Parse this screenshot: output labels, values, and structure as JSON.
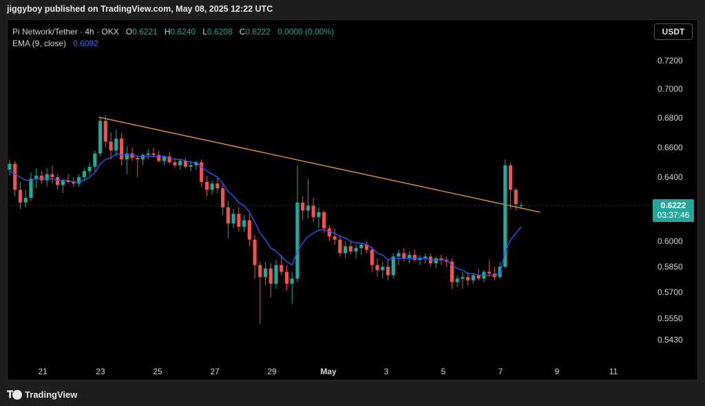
{
  "header": {
    "publish_text": "jiggyboy published on TradingView.com, May 08, 2025 12:22 UTC"
  },
  "legend": {
    "symbol": "Pi Network/Tether · 4h · OKX",
    "o_label": "O",
    "o_value": "0.6221",
    "h_label": "H",
    "h_value": "0.6240",
    "l_label": "L",
    "l_value": "0.6208",
    "c_label": "C",
    "c_value": "0.6222",
    "change": "0.0000 (0.00%)",
    "ema_label": "EMA (9, close)",
    "ema_value": "0.6092"
  },
  "currency_button": "USDT",
  "price_tag": {
    "price": "0.6222",
    "countdown": "03:37:46"
  },
  "footer": {
    "brand": "TradingView"
  },
  "colors": {
    "up": "#26a69a",
    "down": "#ef5350",
    "ema": "#2f55f5",
    "trendline": "#f0a030",
    "background": "#000000"
  },
  "icons": {
    "brand_logo": "tradingview-logo-icon"
  },
  "chart_data": {
    "type": "candlestick",
    "interval": "4h",
    "y_axis": {
      "ticks": [
        0.543,
        0.555,
        0.57,
        0.585,
        0.6,
        0.64,
        0.66,
        0.68,
        0.7,
        0.72
      ],
      "tick_labels": [
        "0.5430",
        "0.5550",
        "0.5700",
        "0.5850",
        "0.6000",
        "0.6400",
        "0.6600",
        "0.6800",
        "0.7000",
        "0.7200"
      ]
    },
    "x_axis": {
      "tick_labels": [
        "21",
        "23",
        "25",
        "27",
        "29",
        "May",
        "3",
        "5",
        "7",
        "9",
        "11"
      ]
    },
    "last_price": 0.6222,
    "candles": [
      {
        "o": 0.645,
        "h": 0.652,
        "l": 0.641,
        "c": 0.649
      },
      {
        "o": 0.649,
        "h": 0.651,
        "l": 0.628,
        "c": 0.632
      },
      {
        "o": 0.632,
        "h": 0.637,
        "l": 0.62,
        "c": 0.624
      },
      {
        "o": 0.624,
        "h": 0.632,
        "l": 0.621,
        "c": 0.627
      },
      {
        "o": 0.627,
        "h": 0.643,
        "l": 0.625,
        "c": 0.639
      },
      {
        "o": 0.639,
        "h": 0.646,
        "l": 0.633,
        "c": 0.641
      },
      {
        "o": 0.641,
        "h": 0.644,
        "l": 0.636,
        "c": 0.638
      },
      {
        "o": 0.638,
        "h": 0.646,
        "l": 0.634,
        "c": 0.642
      },
      {
        "o": 0.642,
        "h": 0.648,
        "l": 0.636,
        "c": 0.64
      },
      {
        "o": 0.64,
        "h": 0.642,
        "l": 0.632,
        "c": 0.635
      },
      {
        "o": 0.635,
        "h": 0.639,
        "l": 0.63,
        "c": 0.638
      },
      {
        "o": 0.638,
        "h": 0.642,
        "l": 0.636,
        "c": 0.637
      },
      {
        "o": 0.637,
        "h": 0.64,
        "l": 0.634,
        "c": 0.636
      },
      {
        "o": 0.636,
        "h": 0.642,
        "l": 0.634,
        "c": 0.64
      },
      {
        "o": 0.64,
        "h": 0.646,
        "l": 0.638,
        "c": 0.644
      },
      {
        "o": 0.644,
        "h": 0.65,
        "l": 0.641,
        "c": 0.647
      },
      {
        "o": 0.647,
        "h": 0.658,
        "l": 0.644,
        "c": 0.656
      },
      {
        "o": 0.656,
        "h": 0.68,
        "l": 0.654,
        "c": 0.678
      },
      {
        "o": 0.678,
        "h": 0.682,
        "l": 0.66,
        "c": 0.664
      },
      {
        "o": 0.664,
        "h": 0.67,
        "l": 0.652,
        "c": 0.658
      },
      {
        "o": 0.658,
        "h": 0.672,
        "l": 0.654,
        "c": 0.666
      },
      {
        "o": 0.666,
        "h": 0.67,
        "l": 0.648,
        "c": 0.652
      },
      {
        "o": 0.652,
        "h": 0.661,
        "l": 0.642,
        "c": 0.656
      },
      {
        "o": 0.656,
        "h": 0.66,
        "l": 0.651,
        "c": 0.653
      },
      {
        "o": 0.653,
        "h": 0.655,
        "l": 0.64,
        "c": 0.652
      },
      {
        "o": 0.652,
        "h": 0.656,
        "l": 0.648,
        "c": 0.655
      },
      {
        "o": 0.655,
        "h": 0.659,
        "l": 0.652,
        "c": 0.656
      },
      {
        "o": 0.656,
        "h": 0.66,
        "l": 0.653,
        "c": 0.655
      },
      {
        "o": 0.655,
        "h": 0.658,
        "l": 0.65,
        "c": 0.651
      },
      {
        "o": 0.651,
        "h": 0.655,
        "l": 0.648,
        "c": 0.654
      },
      {
        "o": 0.654,
        "h": 0.657,
        "l": 0.649,
        "c": 0.65
      },
      {
        "o": 0.65,
        "h": 0.653,
        "l": 0.646,
        "c": 0.648
      },
      {
        "o": 0.648,
        "h": 0.652,
        "l": 0.645,
        "c": 0.651
      },
      {
        "o": 0.651,
        "h": 0.653,
        "l": 0.646,
        "c": 0.647
      },
      {
        "o": 0.647,
        "h": 0.651,
        "l": 0.644,
        "c": 0.648
      },
      {
        "o": 0.648,
        "h": 0.651,
        "l": 0.645,
        "c": 0.65
      },
      {
        "o": 0.65,
        "h": 0.652,
        "l": 0.634,
        "c": 0.637
      },
      {
        "o": 0.637,
        "h": 0.641,
        "l": 0.628,
        "c": 0.632
      },
      {
        "o": 0.632,
        "h": 0.638,
        "l": 0.629,
        "c": 0.636
      },
      {
        "o": 0.636,
        "h": 0.64,
        "l": 0.63,
        "c": 0.633
      },
      {
        "o": 0.633,
        "h": 0.636,
        "l": 0.616,
        "c": 0.621
      },
      {
        "o": 0.621,
        "h": 0.625,
        "l": 0.602,
        "c": 0.611
      },
      {
        "o": 0.611,
        "h": 0.62,
        "l": 0.608,
        "c": 0.617
      },
      {
        "o": 0.617,
        "h": 0.621,
        "l": 0.606,
        "c": 0.609
      },
      {
        "o": 0.609,
        "h": 0.616,
        "l": 0.606,
        "c": 0.613
      },
      {
        "o": 0.613,
        "h": 0.617,
        "l": 0.597,
        "c": 0.601
      },
      {
        "o": 0.601,
        "h": 0.604,
        "l": 0.578,
        "c": 0.586
      },
      {
        "o": 0.586,
        "h": 0.588,
        "l": 0.552,
        "c": 0.579
      },
      {
        "o": 0.579,
        "h": 0.588,
        "l": 0.574,
        "c": 0.584
      },
      {
        "o": 0.584,
        "h": 0.587,
        "l": 0.567,
        "c": 0.575
      },
      {
        "o": 0.575,
        "h": 0.589,
        "l": 0.572,
        "c": 0.586
      },
      {
        "o": 0.586,
        "h": 0.592,
        "l": 0.58,
        "c": 0.582
      },
      {
        "o": 0.582,
        "h": 0.586,
        "l": 0.571,
        "c": 0.575
      },
      {
        "o": 0.575,
        "h": 0.582,
        "l": 0.563,
        "c": 0.578
      },
      {
        "o": 0.578,
        "h": 0.648,
        "l": 0.576,
        "c": 0.624
      },
      {
        "o": 0.624,
        "h": 0.628,
        "l": 0.613,
        "c": 0.619
      },
      {
        "o": 0.619,
        "h": 0.639,
        "l": 0.614,
        "c": 0.622
      },
      {
        "o": 0.622,
        "h": 0.627,
        "l": 0.612,
        "c": 0.615
      },
      {
        "o": 0.615,
        "h": 0.621,
        "l": 0.608,
        "c": 0.618
      },
      {
        "o": 0.618,
        "h": 0.619,
        "l": 0.605,
        "c": 0.608
      },
      {
        "o": 0.608,
        "h": 0.61,
        "l": 0.6,
        "c": 0.603
      },
      {
        "o": 0.603,
        "h": 0.608,
        "l": 0.598,
        "c": 0.601
      },
      {
        "o": 0.601,
        "h": 0.604,
        "l": 0.591,
        "c": 0.593
      },
      {
        "o": 0.593,
        "h": 0.6,
        "l": 0.59,
        "c": 0.597
      },
      {
        "o": 0.597,
        "h": 0.6,
        "l": 0.592,
        "c": 0.594
      },
      {
        "o": 0.594,
        "h": 0.598,
        "l": 0.59,
        "c": 0.596
      },
      {
        "o": 0.596,
        "h": 0.599,
        "l": 0.592,
        "c": 0.598
      },
      {
        "o": 0.598,
        "h": 0.6,
        "l": 0.593,
        "c": 0.595
      },
      {
        "o": 0.595,
        "h": 0.597,
        "l": 0.582,
        "c": 0.586
      },
      {
        "o": 0.586,
        "h": 0.59,
        "l": 0.579,
        "c": 0.583
      },
      {
        "o": 0.583,
        "h": 0.588,
        "l": 0.578,
        "c": 0.585
      },
      {
        "o": 0.585,
        "h": 0.589,
        "l": 0.577,
        "c": 0.58
      },
      {
        "o": 0.58,
        "h": 0.593,
        "l": 0.578,
        "c": 0.591
      },
      {
        "o": 0.591,
        "h": 0.595,
        "l": 0.586,
        "c": 0.593
      },
      {
        "o": 0.593,
        "h": 0.596,
        "l": 0.588,
        "c": 0.59
      },
      {
        "o": 0.59,
        "h": 0.594,
        "l": 0.587,
        "c": 0.592
      },
      {
        "o": 0.592,
        "h": 0.595,
        "l": 0.588,
        "c": 0.589
      },
      {
        "o": 0.589,
        "h": 0.592,
        "l": 0.586,
        "c": 0.59
      },
      {
        "o": 0.59,
        "h": 0.593,
        "l": 0.587,
        "c": 0.591
      },
      {
        "o": 0.591,
        "h": 0.593,
        "l": 0.585,
        "c": 0.587
      },
      {
        "o": 0.587,
        "h": 0.591,
        "l": 0.584,
        "c": 0.59
      },
      {
        "o": 0.59,
        "h": 0.592,
        "l": 0.586,
        "c": 0.589
      },
      {
        "o": 0.589,
        "h": 0.591,
        "l": 0.585,
        "c": 0.588
      },
      {
        "o": 0.588,
        "h": 0.59,
        "l": 0.572,
        "c": 0.576
      },
      {
        "o": 0.576,
        "h": 0.58,
        "l": 0.573,
        "c": 0.578
      },
      {
        "o": 0.578,
        "h": 0.582,
        "l": 0.572,
        "c": 0.579
      },
      {
        "o": 0.579,
        "h": 0.582,
        "l": 0.574,
        "c": 0.577
      },
      {
        "o": 0.577,
        "h": 0.581,
        "l": 0.575,
        "c": 0.58
      },
      {
        "o": 0.58,
        "h": 0.584,
        "l": 0.577,
        "c": 0.578
      },
      {
        "o": 0.578,
        "h": 0.583,
        "l": 0.576,
        "c": 0.582
      },
      {
        "o": 0.582,
        "h": 0.589,
        "l": 0.579,
        "c": 0.581
      },
      {
        "o": 0.581,
        "h": 0.585,
        "l": 0.577,
        "c": 0.579
      },
      {
        "o": 0.579,
        "h": 0.588,
        "l": 0.578,
        "c": 0.585
      },
      {
        "o": 0.585,
        "h": 0.652,
        "l": 0.584,
        "c": 0.648
      },
      {
        "o": 0.648,
        "h": 0.65,
        "l": 0.62,
        "c": 0.632
      },
      {
        "o": 0.632,
        "h": 0.633,
        "l": 0.619,
        "c": 0.623
      },
      {
        "o": 0.6221,
        "h": 0.624,
        "l": 0.6208,
        "c": 0.6222
      }
    ],
    "ema": {
      "label": "EMA (9, close)",
      "values": [
        0.644,
        0.642,
        0.64,
        0.638,
        0.638,
        0.639,
        0.639,
        0.639,
        0.639,
        0.638,
        0.638,
        0.638,
        0.637,
        0.637,
        0.638,
        0.64,
        0.643,
        0.649,
        0.652,
        0.653,
        0.656,
        0.655,
        0.655,
        0.655,
        0.654,
        0.654,
        0.654,
        0.654,
        0.654,
        0.654,
        0.653,
        0.652,
        0.652,
        0.651,
        0.65,
        0.65,
        0.647,
        0.644,
        0.642,
        0.64,
        0.636,
        0.631,
        0.628,
        0.624,
        0.622,
        0.618,
        0.612,
        0.605,
        0.601,
        0.596,
        0.594,
        0.591,
        0.588,
        0.586,
        0.594,
        0.599,
        0.603,
        0.605,
        0.607,
        0.607,
        0.606,
        0.605,
        0.603,
        0.602,
        0.6,
        0.599,
        0.599,
        0.598,
        0.596,
        0.593,
        0.592,
        0.589,
        0.59,
        0.59,
        0.59,
        0.59,
        0.59,
        0.59,
        0.59,
        0.589,
        0.589,
        0.589,
        0.589,
        0.586,
        0.584,
        0.583,
        0.581,
        0.581,
        0.58,
        0.58,
        0.58,
        0.58,
        0.581,
        0.594,
        0.601,
        0.605,
        0.609
      ]
    },
    "trendline": {
      "start": {
        "candle_index": 17,
        "price": 0.6805
      },
      "end": {
        "candle_index": 97,
        "price": 0.618
      }
    }
  }
}
